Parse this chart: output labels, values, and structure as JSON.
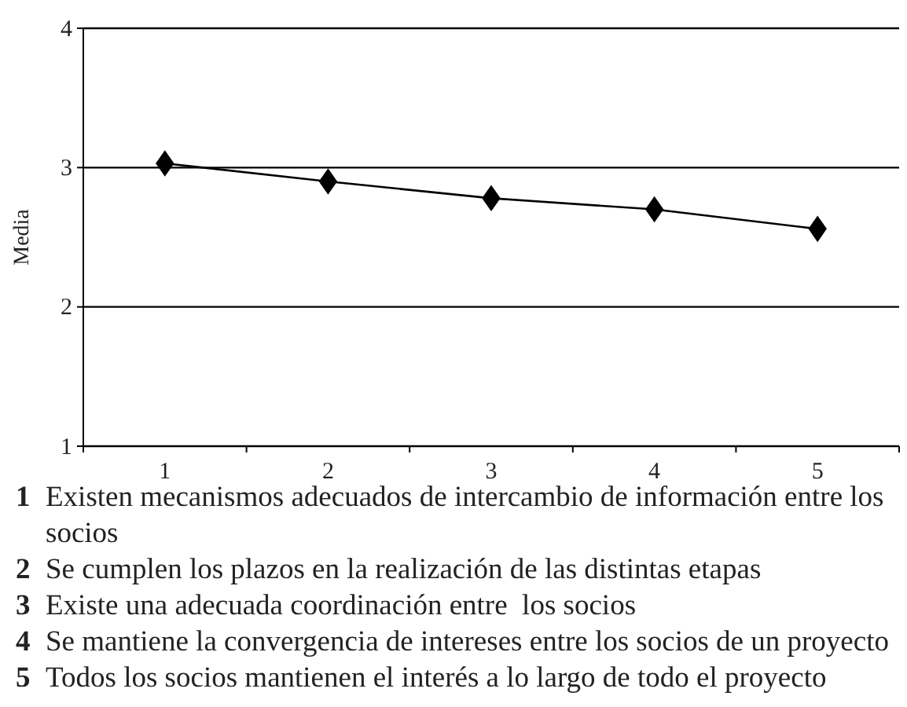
{
  "chart_data": {
    "type": "line",
    "ylabel": "Media",
    "categories": [
      "1",
      "2",
      "3",
      "4",
      "5"
    ],
    "series": [
      {
        "color": "#000000",
        "values": [
          3.03,
          2.9,
          2.78,
          2.7,
          2.56
        ]
      }
    ],
    "ylim": [
      1,
      4
    ],
    "yticks": [
      1,
      2,
      3,
      4
    ],
    "grid": "y",
    "marker": "diamond",
    "line_style": "solid",
    "annotations": [
      "1 Existen mecanismos adecuados de intercambio de información entre los socios",
      "2 Se cumplen los plazos en la realización de las distintas etapas",
      "3 Existe una adecuada coordinación entre  los socios",
      "4 Se mantiene la convergencia de intereses entre los socios de un proyecto",
      "5 Todos los socios mantienen el interés a lo largo de todo el proyecto"
    ]
  }
}
